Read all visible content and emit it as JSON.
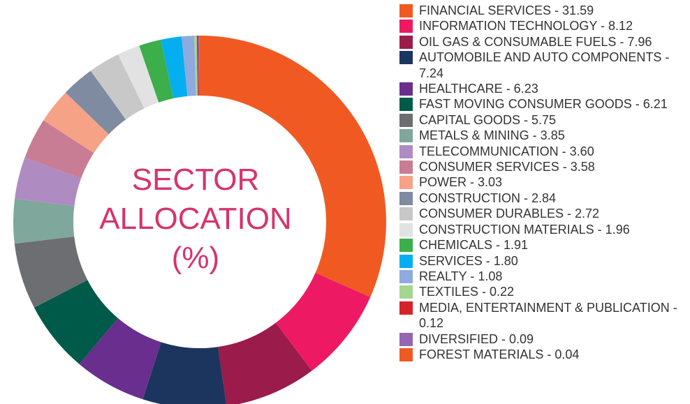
{
  "chart_data": {
    "type": "pie",
    "title": "SECTOR ALLOCATION (%)",
    "title_lines": [
      "SECTOR",
      "ALLOCATION",
      "(%)"
    ],
    "legend_position": "right",
    "slices": [
      {
        "label": "FINANCIAL SERVICES",
        "display": "FINANCIAL SERVICES - 31.59",
        "value": 31.59,
        "color": "#f05a22"
      },
      {
        "label": "INFORMATION TECHNOLOGY",
        "display": "INFORMATION TECHNOLOGY - 8.12",
        "value": 8.12,
        "color": "#ed1a63"
      },
      {
        "label": "OIL GAS & CONSUMABLE FUELS",
        "display": "OIL GAS & CONSUMABLE FUELS - 7.96",
        "value": 7.96,
        "color": "#9b1b4a"
      },
      {
        "label": "AUTOMOBILE AND AUTO COMPONENTS",
        "display": "AUTOMOBILE AND AUTO COMPONENTS - 7.24",
        "value": 7.24,
        "color": "#1c355e"
      },
      {
        "label": "HEALTHCARE",
        "display": "HEALTHCARE - 6.23",
        "value": 6.23,
        "color": "#6a2e8e"
      },
      {
        "label": "FAST MOVING CONSUMER GOODS",
        "display": "FAST MOVING CONSUMER GOODS - 6.21",
        "value": 6.21,
        "color": "#005a4a"
      },
      {
        "label": "CAPITAL GOODS",
        "display": "CAPITAL GOODS - 5.75",
        "value": 5.75,
        "color": "#6d6e71"
      },
      {
        "label": "METALS & MINING",
        "display": "METALS & MINING - 3.85",
        "value": 3.85,
        "color": "#7fa79b"
      },
      {
        "label": "TELECOMMUNICATION",
        "display": "TELECOMMUNICATION - 3.60",
        "value": 3.6,
        "color": "#ae8cc1"
      },
      {
        "label": "CONSUMER SERVICES",
        "display": "CONSUMER SERVICES - 3.58",
        "value": 3.58,
        "color": "#c87d95"
      },
      {
        "label": "POWER",
        "display": "POWER - 3.03",
        "value": 3.03,
        "color": "#f6a287"
      },
      {
        "label": "CONSTRUCTION",
        "display": "CONSTRUCTION - 2.84",
        "value": 2.84,
        "color": "#7e8ba1"
      },
      {
        "label": "CONSUMER DURABLES",
        "display": "CONSUMER DURABLES - 2.72",
        "value": 2.72,
        "color": "#c8c8c8"
      },
      {
        "label": "CONSTRUCTION MATERIALS",
        "display": "CONSTRUCTION MATERIALS - 1.96",
        "value": 1.96,
        "color": "#e2e2e2"
      },
      {
        "label": "CHEMICALS",
        "display": "CHEMICALS - 1.91",
        "value": 1.91,
        "color": "#3cae4a"
      },
      {
        "label": "SERVICES",
        "display": "SERVICES - 1.80",
        "value": 1.8,
        "color": "#05aeef"
      },
      {
        "label": "REALTY",
        "display": "REALTY - 1.08",
        "value": 1.08,
        "color": "#8eaadf"
      },
      {
        "label": "TEXTILES",
        "display": "TEXTILES - 0.22",
        "value": 0.22,
        "color": "#a6d58f"
      },
      {
        "label": "MEDIA, ENTERTAINMENT & PUBLICATION",
        "display": "MEDIA, ENTERTAINMENT & PUBLICATION - 0.12",
        "value": 0.12,
        "color": "#d62229"
      },
      {
        "label": "DIVERSIFIED",
        "display": "DIVERSIFIED - 0.09",
        "value": 0.09,
        "color": "#9466b0"
      },
      {
        "label": "FOREST MATERIALS",
        "display": "FOREST MATERIALS - 0.04",
        "value": 0.04,
        "color": "#f05a22"
      }
    ]
  }
}
